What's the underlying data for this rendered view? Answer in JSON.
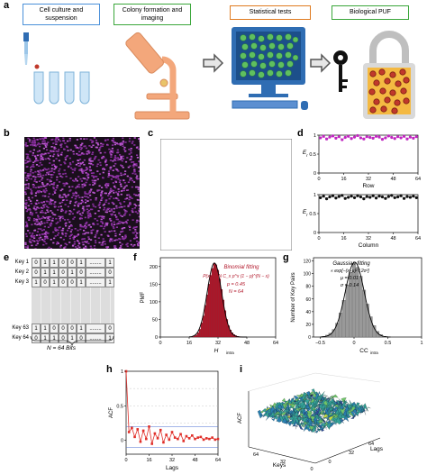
{
  "panels": {
    "a": "a",
    "b": "b",
    "c": "c",
    "d": "d",
    "e": "e",
    "f": "f",
    "g": "g",
    "h": "h",
    "i": "i"
  },
  "steps": [
    {
      "label": "Cell culture and suspension",
      "color": "#4a90d9"
    },
    {
      "label": "Colony formation and imaging",
      "color": "#3aa63a"
    },
    {
      "label": "Statistical tests",
      "color": "#e07b20"
    },
    {
      "label": "Biological PUF",
      "color": "#3aa63a"
    }
  ],
  "panel_d": {
    "top_ylabel": "E",
    "top_ysub": "r",
    "top_xlabel": "Row",
    "bottom_ylabel": "E",
    "bottom_ysub": "r",
    "bottom_xlabel": "Column",
    "yticks": [
      "0",
      "0.5",
      "1"
    ],
    "xticks": [
      "0",
      "16",
      "32",
      "48",
      "64"
    ]
  },
  "panel_e": {
    "rows": [
      {
        "key": "Key 1",
        "bits": [
          "0",
          "1",
          "1",
          "0",
          "0",
          "1"
        ],
        "dots": "........",
        "last": "1"
      },
      {
        "key": "Key 2",
        "bits": [
          "0",
          "1",
          "1",
          "0",
          "1",
          "0"
        ],
        "dots": "........",
        "last": "0"
      },
      {
        "key": "Key 3",
        "bits": [
          "1",
          "0",
          "1",
          "0",
          "0",
          "1"
        ],
        "dots": "........",
        "last": "1"
      },
      {
        "key": "Key 63",
        "bits": [
          "1",
          "1",
          "0",
          "0",
          "0",
          "1"
        ],
        "dots": "........",
        "last": "0"
      },
      {
        "key": "Key 64",
        "bits": [
          "0",
          "1",
          "1",
          "0",
          "1",
          "0"
        ],
        "dots": "........",
        "last": "1"
      }
    ],
    "footer": "N = 64 Bits"
  },
  "panel_f": {
    "ylabel": "PMF",
    "xlabel": "H",
    "xsub": "intra",
    "fit_title": "Binomial fitting",
    "formula": "P(x) = ^N C_x p^x (1 − p)^(N − x)",
    "p_text": "p = 0.45",
    "n_text": "N = 64",
    "yticks": [
      "0",
      "50",
      "100",
      "150",
      "200"
    ],
    "xticks": [
      "0",
      "16",
      "32",
      "48",
      "64"
    ],
    "color": "#b2182b"
  },
  "panel_g": {
    "ylabel": "Number of Key Pairs",
    "xlabel": "CC",
    "xsub": "intra",
    "fit_title": "Gaussian fitting",
    "formula": "∝ exp[−(x−μ)² / 2σ²]",
    "mu_text": "μ = 0.01",
    "sigma_text": "σ = 0.14",
    "yticks": [
      "0",
      "20",
      "40",
      "60",
      "80",
      "100",
      "120"
    ],
    "xticks": [
      "−0.5",
      "0",
      "0.5",
      "1"
    ],
    "color": "#999999"
  },
  "panel_h": {
    "ylabel": "ACF",
    "xlabel": "Lags",
    "yticks": [
      "0",
      "0.5",
      "1"
    ],
    "xticks": [
      "0",
      "16",
      "32",
      "48",
      "64"
    ],
    "color": "#e0302a"
  },
  "panel_i": {
    "zlabel": "ACF",
    "xlabel": "Keys",
    "ylabel": "Lags",
    "xticks": [
      "64",
      "32",
      "0"
    ],
    "yticks": [
      "0",
      "32",
      "64"
    ]
  },
  "chart_data": [
    {
      "type": "scatter",
      "id": "d-row",
      "x": [
        1,
        3,
        5,
        7,
        9,
        11,
        13,
        15,
        17,
        19,
        21,
        23,
        25,
        27,
        29,
        31,
        33,
        35,
        37,
        39,
        41,
        43,
        45,
        47,
        49,
        51,
        53,
        55,
        57,
        59,
        61,
        63
      ],
      "y": [
        0.93,
        0.97,
        0.9,
        0.95,
        0.98,
        0.92,
        0.96,
        0.88,
        0.94,
        0.97,
        0.91,
        0.95,
        0.99,
        0.93,
        0.9,
        0.96,
        0.94,
        0.92,
        0.97,
        0.95,
        0.89,
        0.93,
        0.98,
        0.94,
        0.91,
        0.96,
        0.93,
        0.97,
        0.9,
        0.95,
        0.92,
        0.96
      ],
      "xlabel": "Row",
      "xlim": [
        0,
        64
      ],
      "ylim": [
        0,
        1
      ]
    },
    {
      "type": "scatter",
      "id": "d-column",
      "x": [
        1,
        3,
        5,
        7,
        9,
        11,
        13,
        15,
        17,
        19,
        21,
        23,
        25,
        27,
        29,
        31,
        33,
        35,
        37,
        39,
        41,
        43,
        45,
        47,
        49,
        51,
        53,
        55,
        57,
        59,
        61,
        63
      ],
      "y": [
        0.92,
        0.96,
        0.89,
        0.94,
        0.97,
        0.91,
        0.95,
        0.98,
        0.9,
        0.93,
        0.96,
        0.92,
        0.97,
        0.94,
        0.89,
        0.95,
        0.93,
        0.97,
        0.91,
        0.96,
        0.94,
        0.9,
        0.95,
        0.98,
        0.92,
        0.94,
        0.97,
        0.9,
        0.95,
        0.93,
        0.96,
        0.92
      ],
      "xlabel": "Column",
      "xlim": [
        0,
        64
      ],
      "ylim": [
        0,
        1
      ]
    },
    {
      "type": "bar",
      "id": "f-hist",
      "x": [
        18,
        19,
        20,
        21,
        22,
        23,
        24,
        25,
        26,
        27,
        28,
        29,
        30,
        31,
        32,
        33,
        34,
        35,
        36,
        37,
        38,
        39,
        40,
        41,
        42,
        43,
        44,
        45,
        46
      ],
      "values": [
        1,
        3,
        6,
        12,
        22,
        40,
        60,
        90,
        120,
        150,
        175,
        195,
        210,
        205,
        190,
        165,
        135,
        105,
        75,
        50,
        32,
        20,
        12,
        7,
        4,
        2,
        1,
        1,
        0
      ],
      "xlim": [
        0,
        64
      ],
      "ylim": [
        0,
        225
      ],
      "title": "Binomial fitting"
    },
    {
      "type": "bar",
      "id": "g-hist",
      "x": [
        -0.45,
        -0.4,
        -0.35,
        -0.3,
        -0.25,
        -0.2,
        -0.15,
        -0.1,
        -0.05,
        0,
        0.05,
        0.1,
        0.15,
        0.2,
        0.25,
        0.3,
        0.35,
        0.4,
        0.45
      ],
      "values": [
        1,
        3,
        6,
        12,
        22,
        38,
        58,
        82,
        102,
        116,
        110,
        96,
        74,
        52,
        32,
        18,
        9,
        4,
        1
      ],
      "xlim": [
        -0.6,
        1
      ],
      "ylim": [
        0,
        125
      ],
      "title": "Gaussian fitting"
    },
    {
      "type": "line",
      "id": "h-acf",
      "x": [
        0,
        2,
        4,
        6,
        8,
        10,
        12,
        14,
        16,
        18,
        20,
        22,
        24,
        26,
        28,
        30,
        32,
        34,
        36,
        38,
        40,
        42,
        44,
        46,
        48,
        50,
        52,
        54,
        56,
        58,
        60,
        62,
        64
      ],
      "y": [
        1.0,
        0.12,
        0.18,
        0.05,
        0.16,
        -0.02,
        0.14,
        0.02,
        0.2,
        -0.05,
        0.1,
        0.03,
        0.15,
        -0.03,
        0.08,
        0.01,
        0.12,
        0.04,
        0.02,
        0.09,
        -0.01,
        0.06,
        0.03,
        0.07,
        0.02,
        0.04,
        0.05,
        0.01,
        0.03,
        0.02,
        0.04,
        0.01,
        0.02
      ],
      "xlabel": "Lags",
      "ylabel": "ACF",
      "xlim": [
        0,
        64
      ],
      "ylim": [
        -0.2,
        1
      ]
    }
  ]
}
